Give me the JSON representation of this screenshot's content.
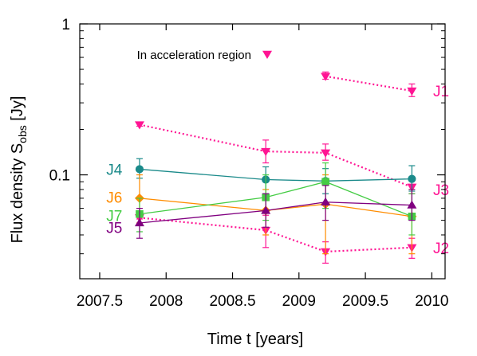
{
  "chart_data": {
    "type": "scatter",
    "title": "",
    "xlabel": "Time t [years]",
    "ylabel": {
      "main": "Flux density S",
      "sub": "obs",
      "unit": " [Jy]"
    },
    "x_scale": "linear",
    "y_scale": "log",
    "xlim": [
      2007.35,
      2010.1
    ],
    "ylim": [
      0.0205,
      1.0
    ],
    "x_ticks": [
      {
        "value": 2007.5,
        "label": "2007.5"
      },
      {
        "value": 2008,
        "label": "2008"
      },
      {
        "value": 2008.5,
        "label": "2008.5"
      },
      {
        "value": 2009,
        "label": "2009"
      },
      {
        "value": 2009.5,
        "label": "2009.5"
      },
      {
        "value": 2010,
        "label": "2010"
      }
    ],
    "y_ticks": [
      {
        "value": 1,
        "label": "1"
      },
      {
        "value": 0.1,
        "label": "0.1"
      }
    ],
    "grid": false,
    "legend": {
      "position": "top-left",
      "label": "In acceleration region",
      "marker": "triangle-down",
      "color": "#ff1493"
    },
    "series": [
      {
        "name": "J1",
        "color": "#ff1493",
        "marker": "triangle-down",
        "dotted": true,
        "x": [
          2009.2,
          2009.85
        ],
        "y": [
          0.45,
          0.36
        ],
        "err_lo": [
          0.43,
          0.33
        ],
        "err_hi": [
          0.48,
          0.4
        ],
        "label_at": {
          "x": 2010.01,
          "y": 0.36
        }
      },
      {
        "name": "J3",
        "color": "#ff1493",
        "marker": "triangle-down",
        "dotted": true,
        "x": [
          2007.8,
          2008.75,
          2009.2,
          2009.85
        ],
        "y": [
          0.215,
          0.143,
          0.14,
          0.083
        ],
        "err_lo": [
          0.21,
          0.12,
          0.125,
          0.075
        ],
        "err_hi": [
          0.22,
          0.17,
          0.16,
          0.095
        ],
        "label_at": {
          "x": 2010.01,
          "y": 0.08
        }
      },
      {
        "name": "J2",
        "color": "#ff1493",
        "marker": "triangle-down",
        "dotted": true,
        "x": [
          2007.8,
          2008.75,
          2009.2,
          2009.85
        ],
        "y": [
          0.052,
          0.043,
          0.031,
          0.033
        ],
        "err_lo": [
          0.051,
          0.033,
          0.026,
          0.028
        ],
        "err_hi": [
          0.053,
          0.054,
          0.036,
          0.038
        ],
        "label_at": {
          "x": 2010.01,
          "y": 0.033
        }
      },
      {
        "name": "J4",
        "color": "#1a8a8a",
        "marker": "circle",
        "dotted": false,
        "x": [
          2007.8,
          2008.75,
          2009.2,
          2009.85
        ],
        "y": [
          0.109,
          0.093,
          0.091,
          0.094
        ],
        "err_lo": [
          0.095,
          0.075,
          0.075,
          0.078
        ],
        "err_hi": [
          0.128,
          0.113,
          0.11,
          0.115
        ],
        "label_at": {
          "x": 2007.61,
          "y": 0.109
        }
      },
      {
        "name": "J6",
        "color": "#ff8c00",
        "marker": "diamond",
        "dotted": false,
        "x": [
          2007.8,
          2008.75,
          2009.2,
          2009.85
        ],
        "y": [
          0.07,
          0.058,
          0.064,
          0.053
        ],
        "err_lo": [
          0.048,
          0.04,
          0.03,
          0.03
        ],
        "err_hi": [
          0.1,
          0.08,
          0.1,
          0.08
        ],
        "label_at": {
          "x": 2007.61,
          "y": 0.071
        }
      },
      {
        "name": "J7",
        "color": "#44cc44",
        "marker": "square",
        "dotted": false,
        "x": [
          2007.8,
          2008.75,
          2009.2,
          2009.85
        ],
        "y": [
          0.055,
          0.071,
          0.09,
          0.053
        ],
        "err_lo": [
          0.042,
          0.05,
          0.06,
          0.04
        ],
        "err_hi": [
          0.07,
          0.1,
          0.12,
          0.075
        ],
        "label_at": {
          "x": 2007.61,
          "y": 0.054
        }
      },
      {
        "name": "J5",
        "color": "#800080",
        "marker": "triangle-up",
        "dotted": false,
        "x": [
          2007.8,
          2008.75,
          2009.2,
          2009.85
        ],
        "y": [
          0.048,
          0.058,
          0.066,
          0.063
        ],
        "err_lo": [
          0.038,
          0.045,
          0.05,
          0.05
        ],
        "err_hi": [
          0.06,
          0.075,
          0.085,
          0.08
        ],
        "label_at": {
          "x": 2007.61,
          "y": 0.045
        }
      }
    ]
  }
}
